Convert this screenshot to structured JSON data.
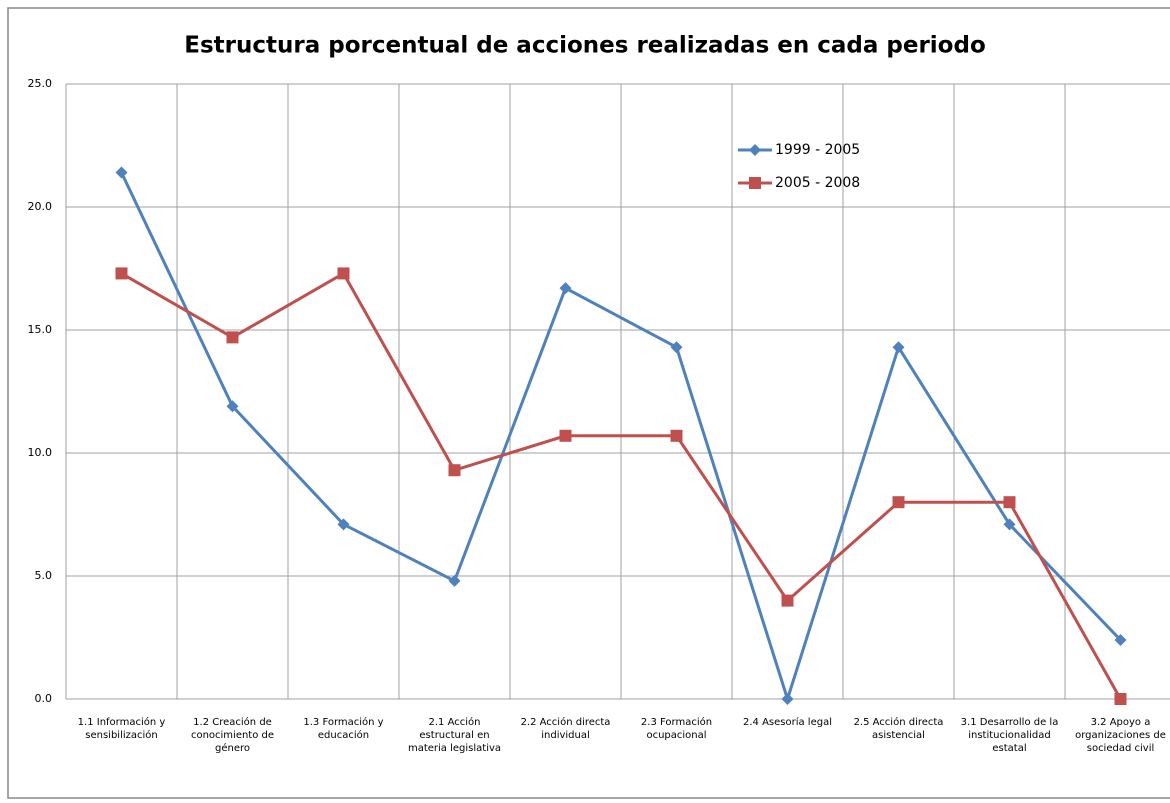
{
  "chart_data": {
    "type": "line",
    "title": "Estructura porcentual de acciones realizadas en cada periodo",
    "categories": [
      "1.1 Información y sensibilización",
      "1.2 Creación de conocimiento de género",
      "1.3 Formación y educación",
      "2.1 Acción estructural en materia legislativa",
      "2.2 Acción directa individual",
      "2.3 Formación ocupacional",
      "2.4 Asesoría legal",
      "2.5 Acción directa asistencial",
      "3.1 Desarrollo de la institucionalidad estatal",
      "3.2 Apoyo a organizaciones de sociedad civil"
    ],
    "series": [
      {
        "name": "1999 - 2005",
        "color": "#4f81bd",
        "marker": "diamond",
        "values": [
          21.4,
          11.9,
          7.1,
          4.8,
          16.7,
          14.3,
          0,
          14.3,
          7.1,
          2.4
        ]
      },
      {
        "name": "2005 - 2008",
        "color": "#c0504d",
        "marker": "square",
        "values": [
          17.3,
          14.7,
          17.3,
          9.3,
          10.7,
          10.7,
          4.0,
          8.0,
          8.0,
          0
        ]
      }
    ],
    "ylim": [
      0,
      25
    ],
    "yticks": [
      {
        "value": 0,
        "label": "0.0"
      },
      {
        "value": 5,
        "label": "5.0"
      },
      {
        "value": 10,
        "label": "10.0"
      },
      {
        "value": 15,
        "label": "15.0"
      },
      {
        "value": 20,
        "label": "20.0"
      },
      {
        "value": 25,
        "label": "25.0"
      }
    ],
    "grid": true,
    "legend_position": "upper-right"
  }
}
